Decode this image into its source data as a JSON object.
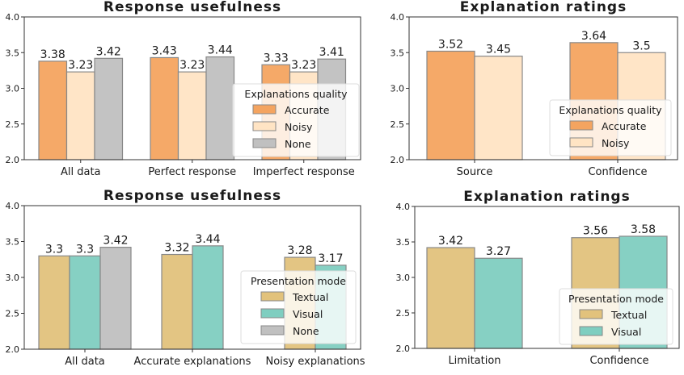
{
  "chart_data": [
    {
      "type": "bar",
      "title": "Response usefulness",
      "categories": [
        "All data",
        "Perfect response",
        "Imperfect response"
      ],
      "ylim": [
        2.0,
        4.0
      ],
      "yticks": [
        "2.0",
        "2.5",
        "3.0",
        "3.5",
        "4.0"
      ],
      "legend": {
        "title": "Explanations quality",
        "placement": "lower-right"
      },
      "series": [
        {
          "name": "Accurate",
          "color": "#F4A460",
          "values": [
            3.38,
            3.43,
            3.33
          ]
        },
        {
          "name": "Noisy",
          "color": "#FFE4C4",
          "values": [
            3.23,
            3.23,
            3.23
          ]
        },
        {
          "name": "None",
          "color": "#C0C0C0",
          "values": [
            3.42,
            3.44,
            3.41
          ]
        }
      ]
    },
    {
      "type": "bar",
      "title": "Explanation ratings",
      "categories": [
        "Source",
        "Confidence"
      ],
      "ylim": [
        2.0,
        4.0
      ],
      "yticks": [
        "2.0",
        "2.5",
        "3.0",
        "3.5",
        "4.0"
      ],
      "legend": {
        "title": "Explanations quality",
        "placement": "lower-right"
      },
      "series": [
        {
          "name": "Accurate",
          "color": "#F4A460",
          "values": [
            3.52,
            3.64
          ]
        },
        {
          "name": "Noisy",
          "color": "#FFE4C4",
          "values": [
            3.45,
            3.5
          ]
        }
      ]
    },
    {
      "type": "bar",
      "title": "Response usefulness",
      "categories": [
        "All data",
        "Accurate explanations",
        "Noisy explanations"
      ],
      "ylim": [
        2.0,
        4.0
      ],
      "yticks": [
        "2.0",
        "2.5",
        "3.0",
        "3.5",
        "4.0"
      ],
      "legend": {
        "title": "Presentation mode",
        "placement": "lower-right"
      },
      "series": [
        {
          "name": "Textual",
          "color": "#E2C27C",
          "values": [
            3.3,
            3.32,
            3.28
          ]
        },
        {
          "name": "Visual",
          "color": "#7FCEC0",
          "values": [
            3.3,
            3.44,
            3.17
          ]
        },
        {
          "name": "None",
          "color": "#C0C0C0",
          "values": [
            3.42,
            null,
            null
          ]
        }
      ]
    },
    {
      "type": "bar",
      "title": "Explanation ratings",
      "categories": [
        "Limitation",
        "Confidence"
      ],
      "ylim": [
        2.0,
        4.0
      ],
      "yticks": [
        "2.0",
        "2.5",
        "3.0",
        "3.5",
        "4.0"
      ],
      "legend": {
        "title": "Presentation mode",
        "placement": "lower-right"
      },
      "series": [
        {
          "name": "Textual",
          "color": "#E2C27C",
          "values": [
            3.42,
            3.56
          ]
        },
        {
          "name": "Visual",
          "color": "#7FCEC0",
          "values": [
            3.27,
            3.58
          ]
        }
      ]
    }
  ]
}
